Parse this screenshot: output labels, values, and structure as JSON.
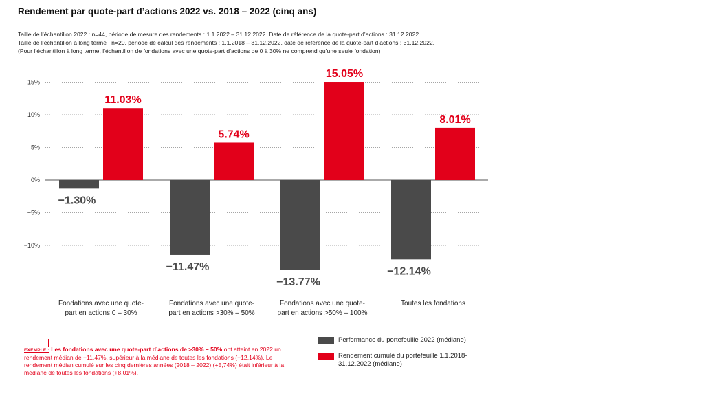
{
  "title": "Rendement par quote-part d’actions 2022 vs. 2018 – 2022 (cinq ans)",
  "notes": [
    "Taille de l’échantillon 2022 : n=44, période de mesure des rendements : 1.1.2022 – 31.12.2022. Date de référence de la quote-part d’actions : 31.12.2022.",
    "Taille de l’échantillon à long terme : n=20, période de calcul des rendements : 1.1.2018 – 31.12.2022, date de référence de la quote-part d’actions : 31.12.2022.",
    "(Pour l’échantillon à long terme, l’échantillon de fondations avec une quote-part d’actions de 0 à 30% ne comprend qu’une seule fondation)"
  ],
  "example": {
    "tag": "EXEMPLE :",
    "bold": "Les fondations avec une quote-part d’actions de >30% – 50%",
    "text": " ont atteint en 2022 un rendement médian de −11,47%, supérieur à la médiane de toutes les fondations (−12,14%). Le rendement médian cumulé sur les cinq dernières années (2018 – 2022) (+5,74%) était inférieur à la médiane de toutes les fondations (+8,01%)."
  },
  "legend": [
    {
      "label": "Performance du portefeuille 2022 (médiane)",
      "color": "#4a4a4a"
    },
    {
      "label": "Rendement cumulé du portefeuille 1.1.2018-31.12.2022 (médiane)",
      "color": "#e2001a"
    }
  ],
  "chart_data": {
    "type": "bar",
    "categories": [
      [
        "Fondations avec une quote-",
        "part en actions 0 – 30%"
      ],
      [
        "Fondations avec une quote-",
        "part en actions >30% – 50%"
      ],
      [
        "Fondations avec une quote-",
        "part en actions >50% – 100%"
      ],
      [
        "Toutes les fondations"
      ]
    ],
    "series": [
      {
        "name": "Performance du portefeuille 2022 (médiane)",
        "color": "#4a4a4a",
        "values": [
          -1.3,
          -11.47,
          -13.77,
          -12.14
        ],
        "labels": [
          "−1.30%",
          "−11.47%",
          "−13.77%",
          "−12.14%"
        ]
      },
      {
        "name": "Rendement cumulé du portefeuille 1.1.2018-31.12.2022 (médiane)",
        "color": "#e2001a",
        "values": [
          11.03,
          5.74,
          15.05,
          8.01
        ],
        "labels": [
          "11.03%",
          "5.74%",
          "15.05%",
          "8.01%"
        ]
      }
    ],
    "yticks": [
      15,
      10,
      5,
      0,
      -5,
      -10
    ],
    "ytick_labels": [
      "15%",
      "10%",
      "5%",
      "0%",
      "−5%",
      "−10%"
    ],
    "ylim": [
      -14.5,
      16
    ],
    "grid": true
  }
}
